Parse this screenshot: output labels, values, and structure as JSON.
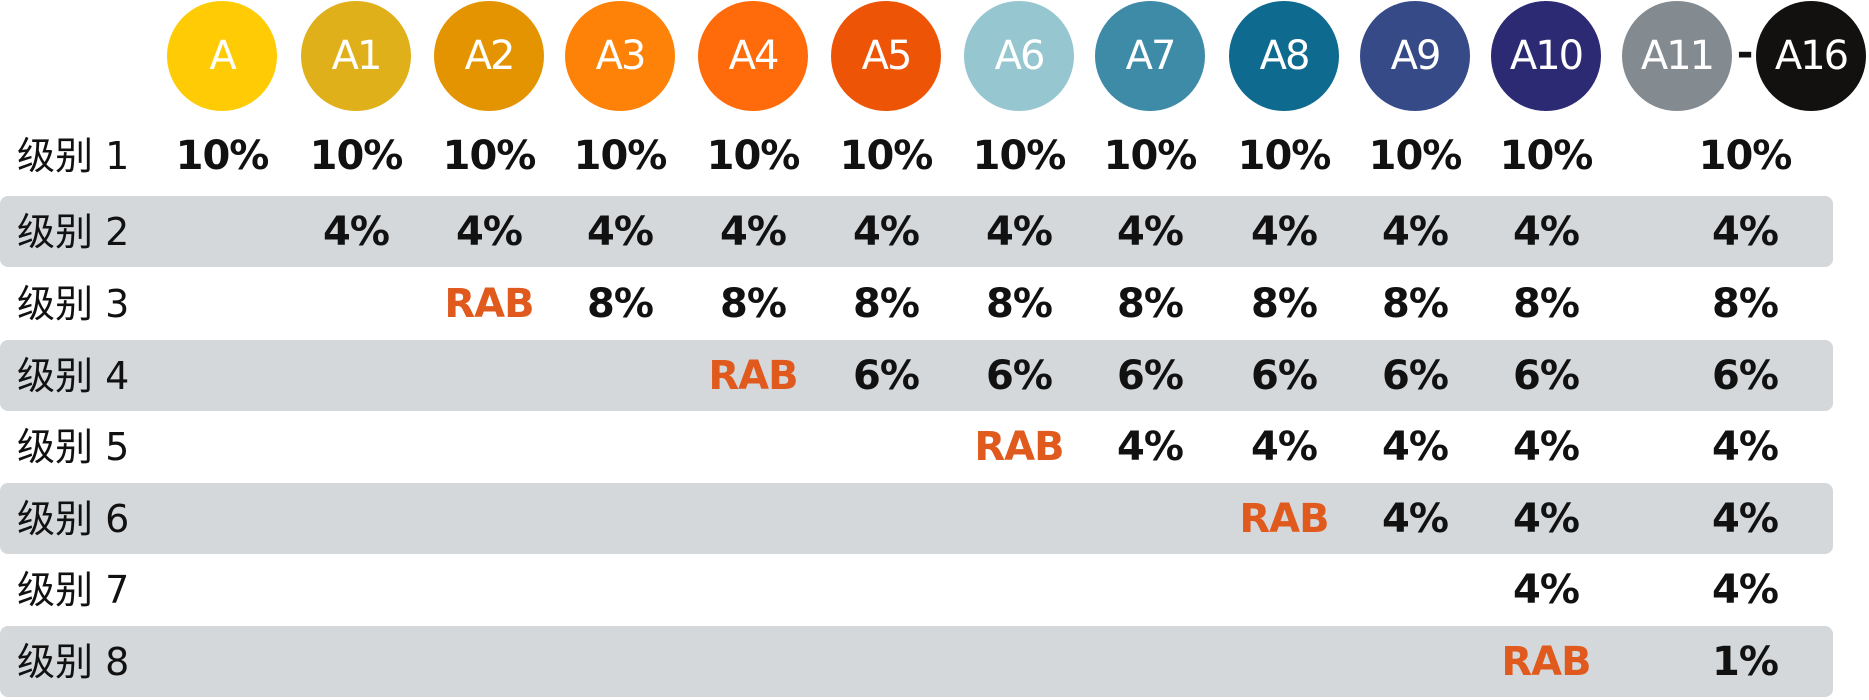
{
  "columns": [
    {
      "label": "A",
      "color": "#FFCB05"
    },
    {
      "label": "A1",
      "color": "#E0B01A"
    },
    {
      "label": "A2",
      "color": "#E39400"
    },
    {
      "label": "A3",
      "color": "#FF8208"
    },
    {
      "label": "A4",
      "color": "#FF6A0A"
    },
    {
      "label": "A5",
      "color": "#EE5406"
    },
    {
      "label": "A6",
      "color": "#96C6D0"
    },
    {
      "label": "A7",
      "color": "#3E8BA8"
    },
    {
      "label": "A8",
      "color": "#0F6A8F"
    },
    {
      "label": "A9",
      "color": "#354A87"
    },
    {
      "label": "A10",
      "color": "#2C2A73"
    }
  ],
  "range_column": {
    "from": {
      "label": "A11",
      "color": "#838B91"
    },
    "separator": "-",
    "to": {
      "label": "A16",
      "color": "#12110F"
    }
  },
  "highlight_color": "#E05A1E",
  "band_color": "#D4D8DB",
  "rows": [
    {
      "label": "级别 1",
      "values": [
        "10%",
        "10%",
        "10%",
        "10%",
        "10%",
        "10%",
        "10%",
        "10%",
        "10%",
        "10%",
        "10%",
        "10%"
      ]
    },
    {
      "label": "级别 2",
      "values": [
        "",
        "4%",
        "4%",
        "4%",
        "4%",
        "4%",
        "4%",
        "4%",
        "4%",
        "4%",
        "4%",
        "4%"
      ]
    },
    {
      "label": "级别 3",
      "values": [
        "",
        "",
        "RAB",
        "8%",
        "8%",
        "8%",
        "8%",
        "8%",
        "8%",
        "8%",
        "8%",
        "8%"
      ]
    },
    {
      "label": "级别 4",
      "values": [
        "",
        "",
        "",
        "",
        "RAB",
        "6%",
        "6%",
        "6%",
        "6%",
        "6%",
        "6%",
        "6%"
      ]
    },
    {
      "label": "级别 5",
      "values": [
        "",
        "",
        "",
        "",
        "",
        "",
        "RAB",
        "4%",
        "4%",
        "4%",
        "4%",
        "4%"
      ]
    },
    {
      "label": "级别 6",
      "values": [
        "",
        "",
        "",
        "",
        "",
        "",
        "",
        "",
        "RAB",
        "4%",
        "4%",
        "4%"
      ]
    },
    {
      "label": "级别 7",
      "values": [
        "",
        "",
        "",
        "",
        "",
        "",
        "",
        "",
        "",
        "",
        "4%",
        "4%"
      ]
    },
    {
      "label": "级别 8",
      "values": [
        "",
        "",
        "",
        "",
        "",
        "",
        "",
        "",
        "",
        "",
        "RAB",
        "1%"
      ]
    }
  ]
}
